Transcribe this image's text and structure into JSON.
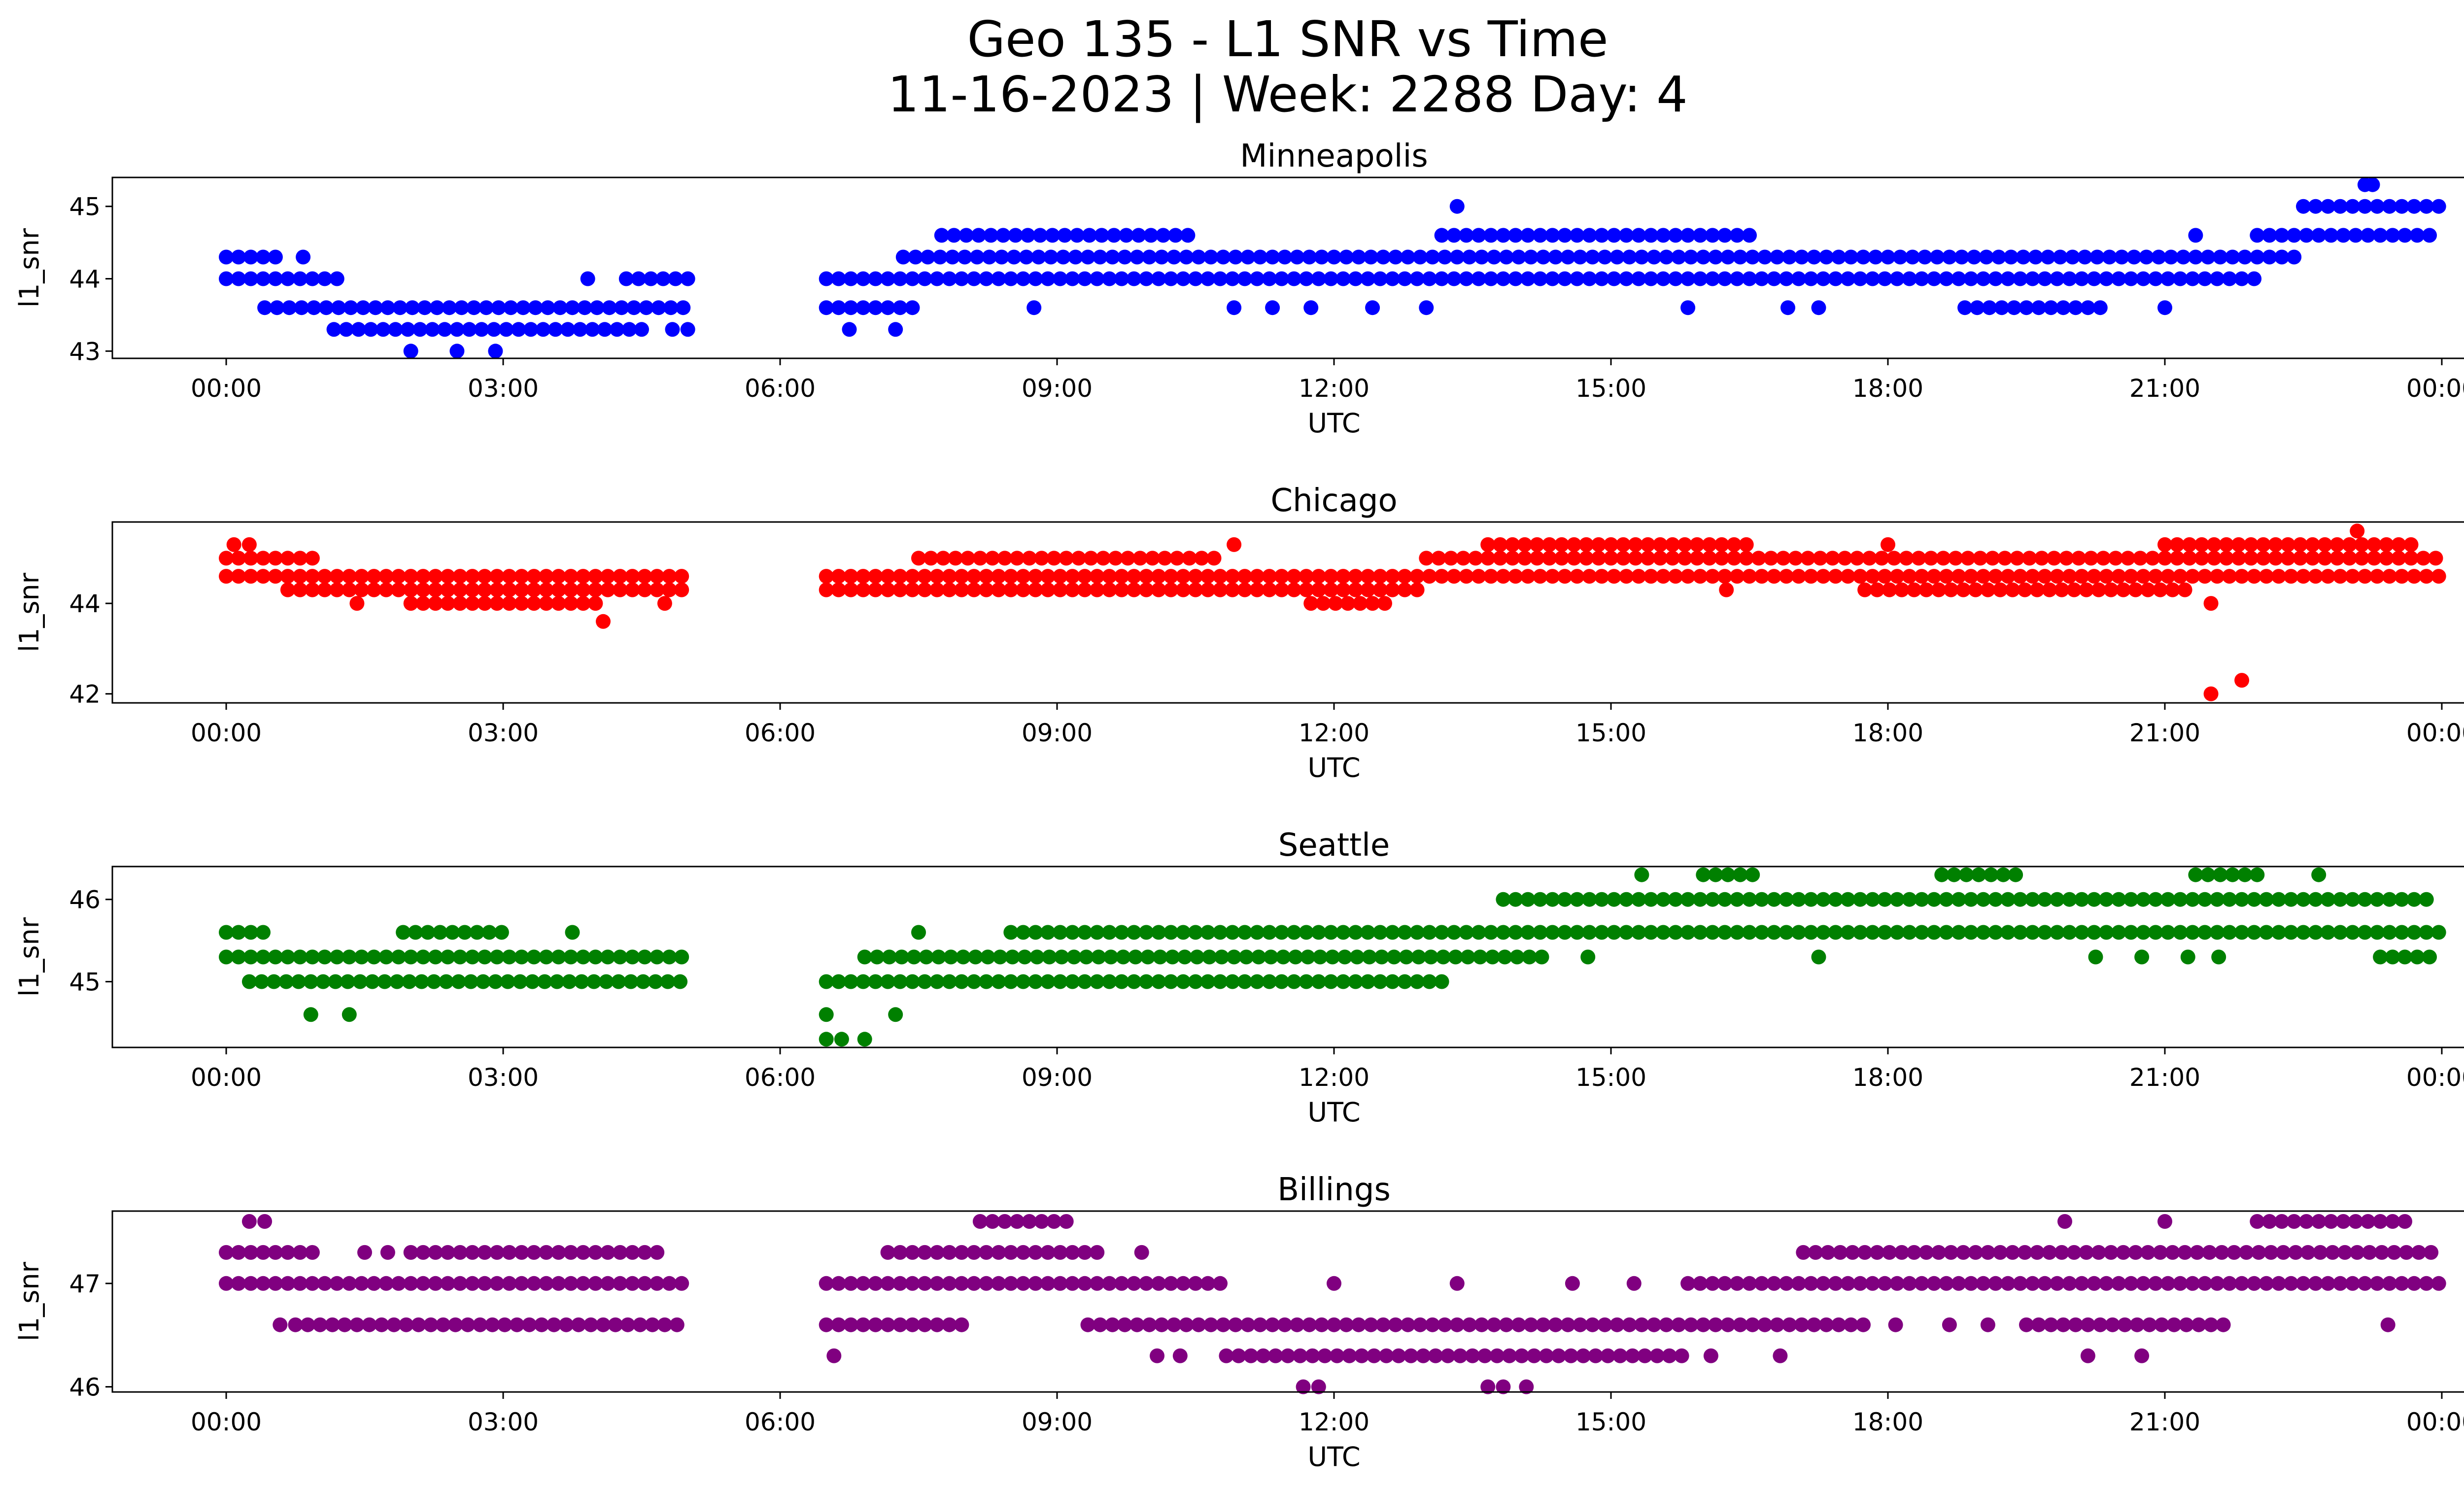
{
  "figure": {
    "title_line1": "Geo 135 - L1 SNR vs Time",
    "title_line2": "11-16-2023 | Week: 2288 Day: 4"
  },
  "chart_data": [
    {
      "type": "scatter",
      "title": "Minneapolis",
      "color": "#0000ff",
      "xlabel": "UTC",
      "ylabel": "l1_snr",
      "xlim": [
        "2023-11-15 22:46",
        "2023-11-17 01:14"
      ],
      "ylim": [
        42.9,
        45.4
      ],
      "yticks": [
        43,
        44,
        45
      ],
      "xticks": [
        "00:00",
        "03:00",
        "06:00",
        "09:00",
        "12:00",
        "15:00",
        "18:00",
        "21:00",
        "00:00"
      ],
      "segments": [
        {
          "y": 44.3,
          "start": "00:00",
          "end": "00:35"
        },
        {
          "y": 44.0,
          "start": "00:00",
          "end": "01:15"
        },
        {
          "y": 43.6,
          "start": "00:25",
          "end": "05:00"
        },
        {
          "y": 43.3,
          "start": "01:10",
          "end": "04:25"
        },
        {
          "y": 44.0,
          "start": "04:20",
          "end": "05:00"
        },
        {
          "y": 43.6,
          "start": "06:30",
          "end": "07:30"
        },
        {
          "y": 44.0,
          "start": "06:30",
          "end": "22:00"
        },
        {
          "y": 44.3,
          "start": "07:20",
          "end": "22:30"
        },
        {
          "y": 44.6,
          "start": "07:45",
          "end": "10:25"
        },
        {
          "y": 44.6,
          "start": "13:10",
          "end": "16:30"
        },
        {
          "y": 43.6,
          "start": "18:50",
          "end": "20:20"
        },
        {
          "y": 44.6,
          "start": "22:00",
          "end": "23:59"
        },
        {
          "y": 45.0,
          "start": "22:30",
          "end": "23:59"
        }
      ],
      "points": [
        {
          "x": "00:50",
          "y": 44.3
        },
        {
          "x": "02:00",
          "y": 43.0
        },
        {
          "x": "02:30",
          "y": 43.0
        },
        {
          "x": "02:55",
          "y": 43.0
        },
        {
          "x": "03:55",
          "y": 44.0
        },
        {
          "x": "04:30",
          "y": 43.3
        },
        {
          "x": "04:50",
          "y": 43.3
        },
        {
          "x": "05:00",
          "y": 43.3
        },
        {
          "x": "06:45",
          "y": 43.3
        },
        {
          "x": "07:15",
          "y": 43.3
        },
        {
          "x": "08:45",
          "y": 43.6
        },
        {
          "x": "10:55",
          "y": 43.6
        },
        {
          "x": "11:20",
          "y": 43.6
        },
        {
          "x": "11:45",
          "y": 43.6
        },
        {
          "x": "12:25",
          "y": 43.6
        },
        {
          "x": "13:00",
          "y": 43.6
        },
        {
          "x": "13:20",
          "y": 45.0
        },
        {
          "x": "15:50",
          "y": 43.6
        },
        {
          "x": "16:55",
          "y": 43.6
        },
        {
          "x": "17:15",
          "y": 43.6
        },
        {
          "x": "21:00",
          "y": 43.6
        },
        {
          "x": "21:20",
          "y": 44.6
        },
        {
          "x": "23:10",
          "y": 45.3
        },
        {
          "x": "23:15",
          "y": 45.3
        }
      ]
    },
    {
      "type": "scatter",
      "title": "Chicago",
      "color": "#ff0000",
      "xlabel": "UTC",
      "ylabel": "l1_snr",
      "xlim": [
        "2023-11-15 22:46",
        "2023-11-17 01:14"
      ],
      "ylim": [
        41.8,
        45.8
      ],
      "yticks": [
        42,
        44
      ],
      "xticks": [
        "00:00",
        "03:00",
        "06:00",
        "09:00",
        "12:00",
        "15:00",
        "18:00",
        "21:00",
        "00:00"
      ],
      "segments": [
        {
          "y": 45.0,
          "start": "00:00",
          "end": "01:00"
        },
        {
          "y": 44.6,
          "start": "00:00",
          "end": "05:00"
        },
        {
          "y": 44.3,
          "start": "00:40",
          "end": "05:00"
        },
        {
          "y": 44.0,
          "start": "02:00",
          "end": "04:00"
        },
        {
          "y": 44.6,
          "start": "06:30",
          "end": "23:59"
        },
        {
          "y": 44.3,
          "start": "06:30",
          "end": "13:00"
        },
        {
          "y": 44.0,
          "start": "11:45",
          "end": "12:40"
        },
        {
          "y": 45.0,
          "start": "07:30",
          "end": "10:45"
        },
        {
          "y": 45.0,
          "start": "13:00",
          "end": "23:59"
        },
        {
          "y": 45.3,
          "start": "13:40",
          "end": "16:30"
        },
        {
          "y": 44.3,
          "start": "17:45",
          "end": "21:20"
        },
        {
          "y": 45.3,
          "start": "21:00",
          "end": "23:45"
        }
      ],
      "points": [
        {
          "x": "00:05",
          "y": 45.3
        },
        {
          "x": "00:15",
          "y": 45.3
        },
        {
          "x": "01:25",
          "y": 44.0
        },
        {
          "x": "04:05",
          "y": 43.6
        },
        {
          "x": "04:45",
          "y": 44.0
        },
        {
          "x": "10:55",
          "y": 45.3
        },
        {
          "x": "16:15",
          "y": 44.3
        },
        {
          "x": "18:00",
          "y": 45.3
        },
        {
          "x": "21:30",
          "y": 44.0
        },
        {
          "x": "21:30",
          "y": 42.0
        },
        {
          "x": "21:50",
          "y": 42.3
        },
        {
          "x": "23:05",
          "y": 45.6
        }
      ]
    },
    {
      "type": "scatter",
      "title": "Seattle",
      "color": "#008000",
      "xlabel": "UTC",
      "ylabel": "l1_snr",
      "xlim": [
        "2023-11-15 22:46",
        "2023-11-17 01:14"
      ],
      "ylim": [
        44.2,
        46.4
      ],
      "yticks": [
        45,
        46
      ],
      "xticks": [
        "00:00",
        "03:00",
        "06:00",
        "09:00",
        "12:00",
        "15:00",
        "18:00",
        "21:00",
        "00:00"
      ],
      "segments": [
        {
          "y": 45.6,
          "start": "00:00",
          "end": "00:30"
        },
        {
          "y": 45.3,
          "start": "00:00",
          "end": "05:00"
        },
        {
          "y": 45.0,
          "start": "00:15",
          "end": "05:00"
        },
        {
          "y": 45.6,
          "start": "01:55",
          "end": "03:05"
        },
        {
          "y": 45.0,
          "start": "06:30",
          "end": "13:15"
        },
        {
          "y": 45.3,
          "start": "06:55",
          "end": "14:15"
        },
        {
          "y": 45.6,
          "start": "08:30",
          "end": "23:59"
        },
        {
          "y": 46.0,
          "start": "13:50",
          "end": "23:50"
        },
        {
          "y": 46.3,
          "start": "16:00",
          "end": "16:35"
        },
        {
          "y": 46.3,
          "start": "18:35",
          "end": "19:25"
        },
        {
          "y": 46.3,
          "start": "21:20",
          "end": "22:05"
        },
        {
          "y": 45.3,
          "start": "23:20",
          "end": "23:59"
        }
      ],
      "points": [
        {
          "x": "00:55",
          "y": 44.6
        },
        {
          "x": "01:20",
          "y": 44.6
        },
        {
          "x": "03:45",
          "y": 45.6
        },
        {
          "x": "06:30",
          "y": 44.3
        },
        {
          "x": "06:40",
          "y": 44.3
        },
        {
          "x": "06:55",
          "y": 44.3
        },
        {
          "x": "06:30",
          "y": 44.6
        },
        {
          "x": "07:15",
          "y": 44.6
        },
        {
          "x": "07:30",
          "y": 45.6
        },
        {
          "x": "14:45",
          "y": 45.3
        },
        {
          "x": "15:20",
          "y": 46.3
        },
        {
          "x": "17:15",
          "y": 45.3
        },
        {
          "x": "20:15",
          "y": 45.3
        },
        {
          "x": "20:45",
          "y": 45.3
        },
        {
          "x": "21:15",
          "y": 45.3
        },
        {
          "x": "21:35",
          "y": 45.3
        },
        {
          "x": "22:40",
          "y": 46.3
        }
      ]
    },
    {
      "type": "scatter",
      "title": "Billings",
      "color": "#800080",
      "xlabel": "UTC",
      "ylabel": "l1_snr",
      "xlim": [
        "2023-11-15 22:46",
        "2023-11-17 01:14"
      ],
      "ylim": [
        45.95,
        47.7
      ],
      "yticks": [
        46,
        47
      ],
      "xticks": [
        "00:00",
        "03:00",
        "06:00",
        "09:00",
        "12:00",
        "15:00",
        "18:00",
        "21:00",
        "00:00"
      ],
      "segments": [
        {
          "y": 47.3,
          "start": "00:00",
          "end": "01:00"
        },
        {
          "y": 47.0,
          "start": "00:00",
          "end": "05:00"
        },
        {
          "y": 46.6,
          "start": "00:45",
          "end": "05:00"
        },
        {
          "y": 47.3,
          "start": "02:00",
          "end": "04:45"
        },
        {
          "y": 47.0,
          "start": "06:30",
          "end": "10:50"
        },
        {
          "y": 46.6,
          "start": "06:30",
          "end": "08:00"
        },
        {
          "y": 47.3,
          "start": "07:10",
          "end": "09:30"
        },
        {
          "y": 47.6,
          "start": "08:10",
          "end": "09:10"
        },
        {
          "y": 46.6,
          "start": "09:20",
          "end": "17:50"
        },
        {
          "y": 46.3,
          "start": "10:50",
          "end": "15:50"
        },
        {
          "y": 47.0,
          "start": "15:50",
          "end": "23:59"
        },
        {
          "y": 47.3,
          "start": "17:05",
          "end": "23:59"
        },
        {
          "y": 46.6,
          "start": "19:30",
          "end": "21:40"
        },
        {
          "y": 47.6,
          "start": "22:00",
          "end": "23:40"
        }
      ],
      "points": [
        {
          "x": "00:15",
          "y": 47.6
        },
        {
          "x": "00:25",
          "y": 47.6
        },
        {
          "x": "00:35",
          "y": 46.6
        },
        {
          "x": "01:30",
          "y": 47.3
        },
        {
          "x": "01:45",
          "y": 47.3
        },
        {
          "x": "06:35",
          "y": 46.3
        },
        {
          "x": "09:55",
          "y": 47.3
        },
        {
          "x": "10:05",
          "y": 46.3
        },
        {
          "x": "10:20",
          "y": 46.3
        },
        {
          "x": "11:40",
          "y": 46.0
        },
        {
          "x": "11:50",
          "y": 46.0
        },
        {
          "x": "12:00",
          "y": 47.0
        },
        {
          "x": "13:20",
          "y": 47.0
        },
        {
          "x": "13:40",
          "y": 46.0
        },
        {
          "x": "13:50",
          "y": 46.0
        },
        {
          "x": "14:05",
          "y": 46.0
        },
        {
          "x": "14:35",
          "y": 47.0
        },
        {
          "x": "15:15",
          "y": 47.0
        },
        {
          "x": "16:05",
          "y": 46.3
        },
        {
          "x": "16:50",
          "y": 46.3
        },
        {
          "x": "18:05",
          "y": 46.6
        },
        {
          "x": "18:40",
          "y": 46.6
        },
        {
          "x": "19:05",
          "y": 46.6
        },
        {
          "x": "19:55",
          "y": 47.6
        },
        {
          "x": "20:10",
          "y": 46.3
        },
        {
          "x": "20:45",
          "y": 46.3
        },
        {
          "x": "21:00",
          "y": 47.6
        },
        {
          "x": "23:25",
          "y": 46.6
        }
      ]
    }
  ]
}
